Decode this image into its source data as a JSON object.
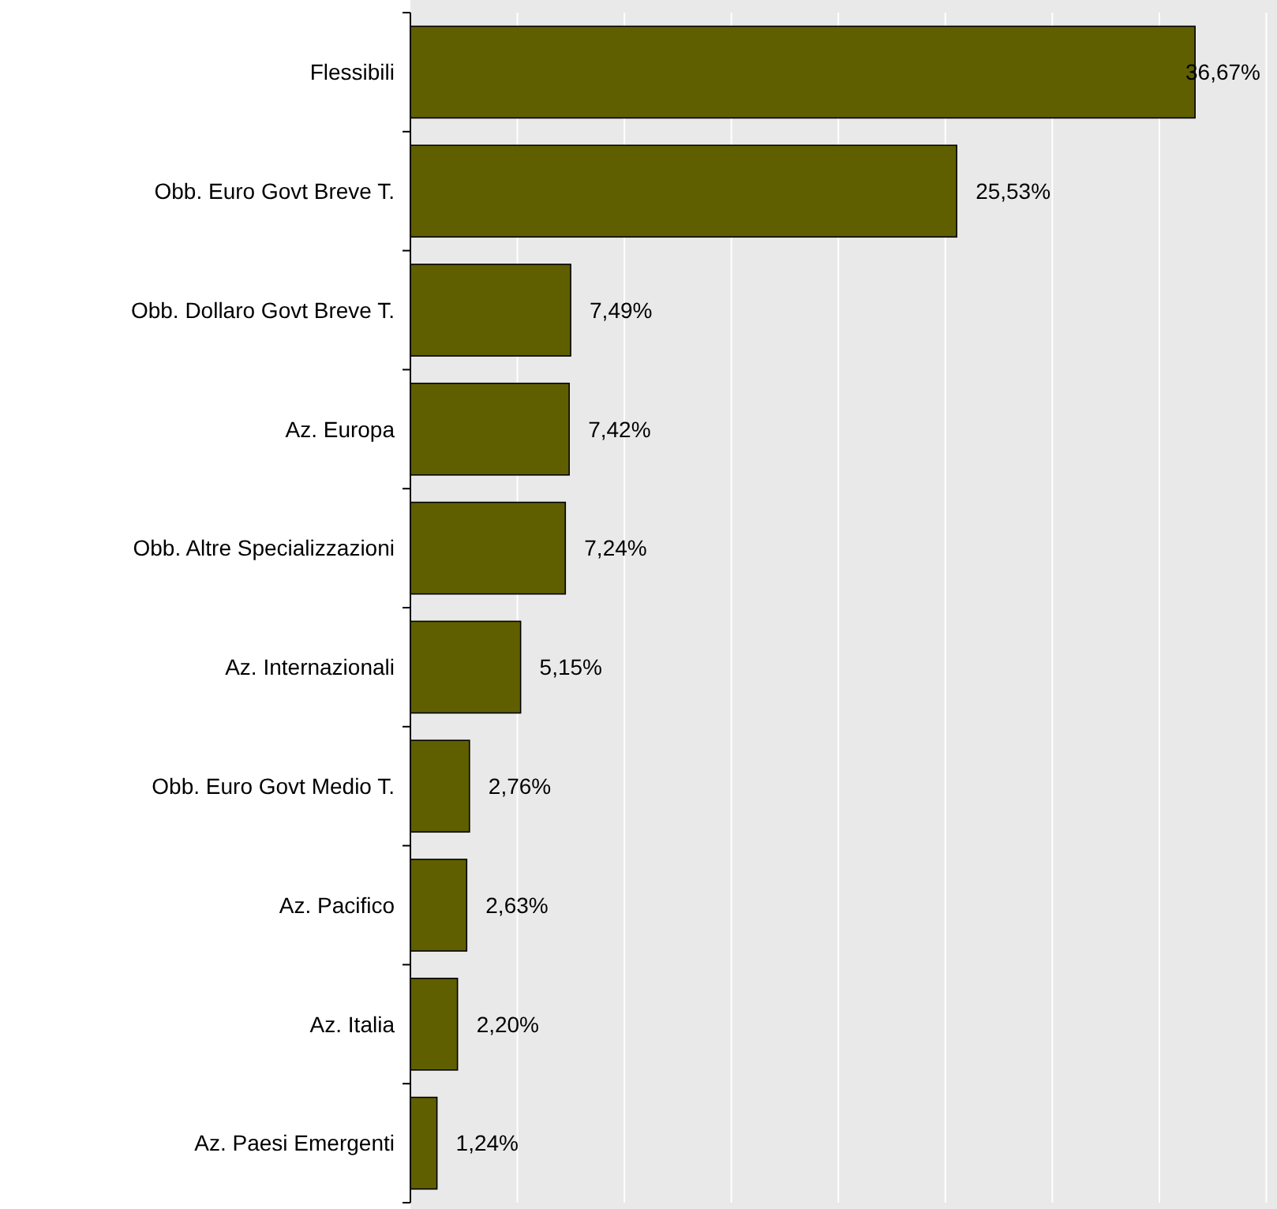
{
  "chart_data": {
    "type": "bar",
    "orientation": "horizontal",
    "categories": [
      "Flessibili",
      "Obb. Euro Govt Breve T.",
      "Obb. Dollaro Govt Breve T.",
      "Az. Europa",
      "Obb. Altre Specializzazioni",
      "Az. Internazionali",
      "Obb. Euro Govt Medio T.",
      "Az. Pacifico",
      "Az. Italia",
      "Az. Paesi Emergenti"
    ],
    "values": [
      36.67,
      25.53,
      7.49,
      7.42,
      7.24,
      5.15,
      2.76,
      2.63,
      2.2,
      1.24
    ],
    "value_labels": [
      "36,67%",
      "25,53%",
      "7,49%",
      "7,42%",
      "7,24%",
      "5,15%",
      "2,76%",
      "2,63%",
      "2,20%",
      "1,24%"
    ],
    "color": "#5f5f00",
    "xlim": [
      0,
      40.5
    ],
    "xticks": [
      {
        "value": 0,
        "label": null
      },
      {
        "value": 5,
        "label": null
      },
      {
        "value": 10,
        "label": null
      },
      {
        "value": 15,
        "label": null
      },
      {
        "value": 20,
        "label": null
      },
      {
        "value": 25,
        "label": null
      },
      {
        "value": 30,
        "label": null
      },
      {
        "value": 35,
        "label": null
      },
      {
        "value": 40,
        "label": null
      }
    ],
    "grid": "x",
    "tick_labels": "y"
  }
}
